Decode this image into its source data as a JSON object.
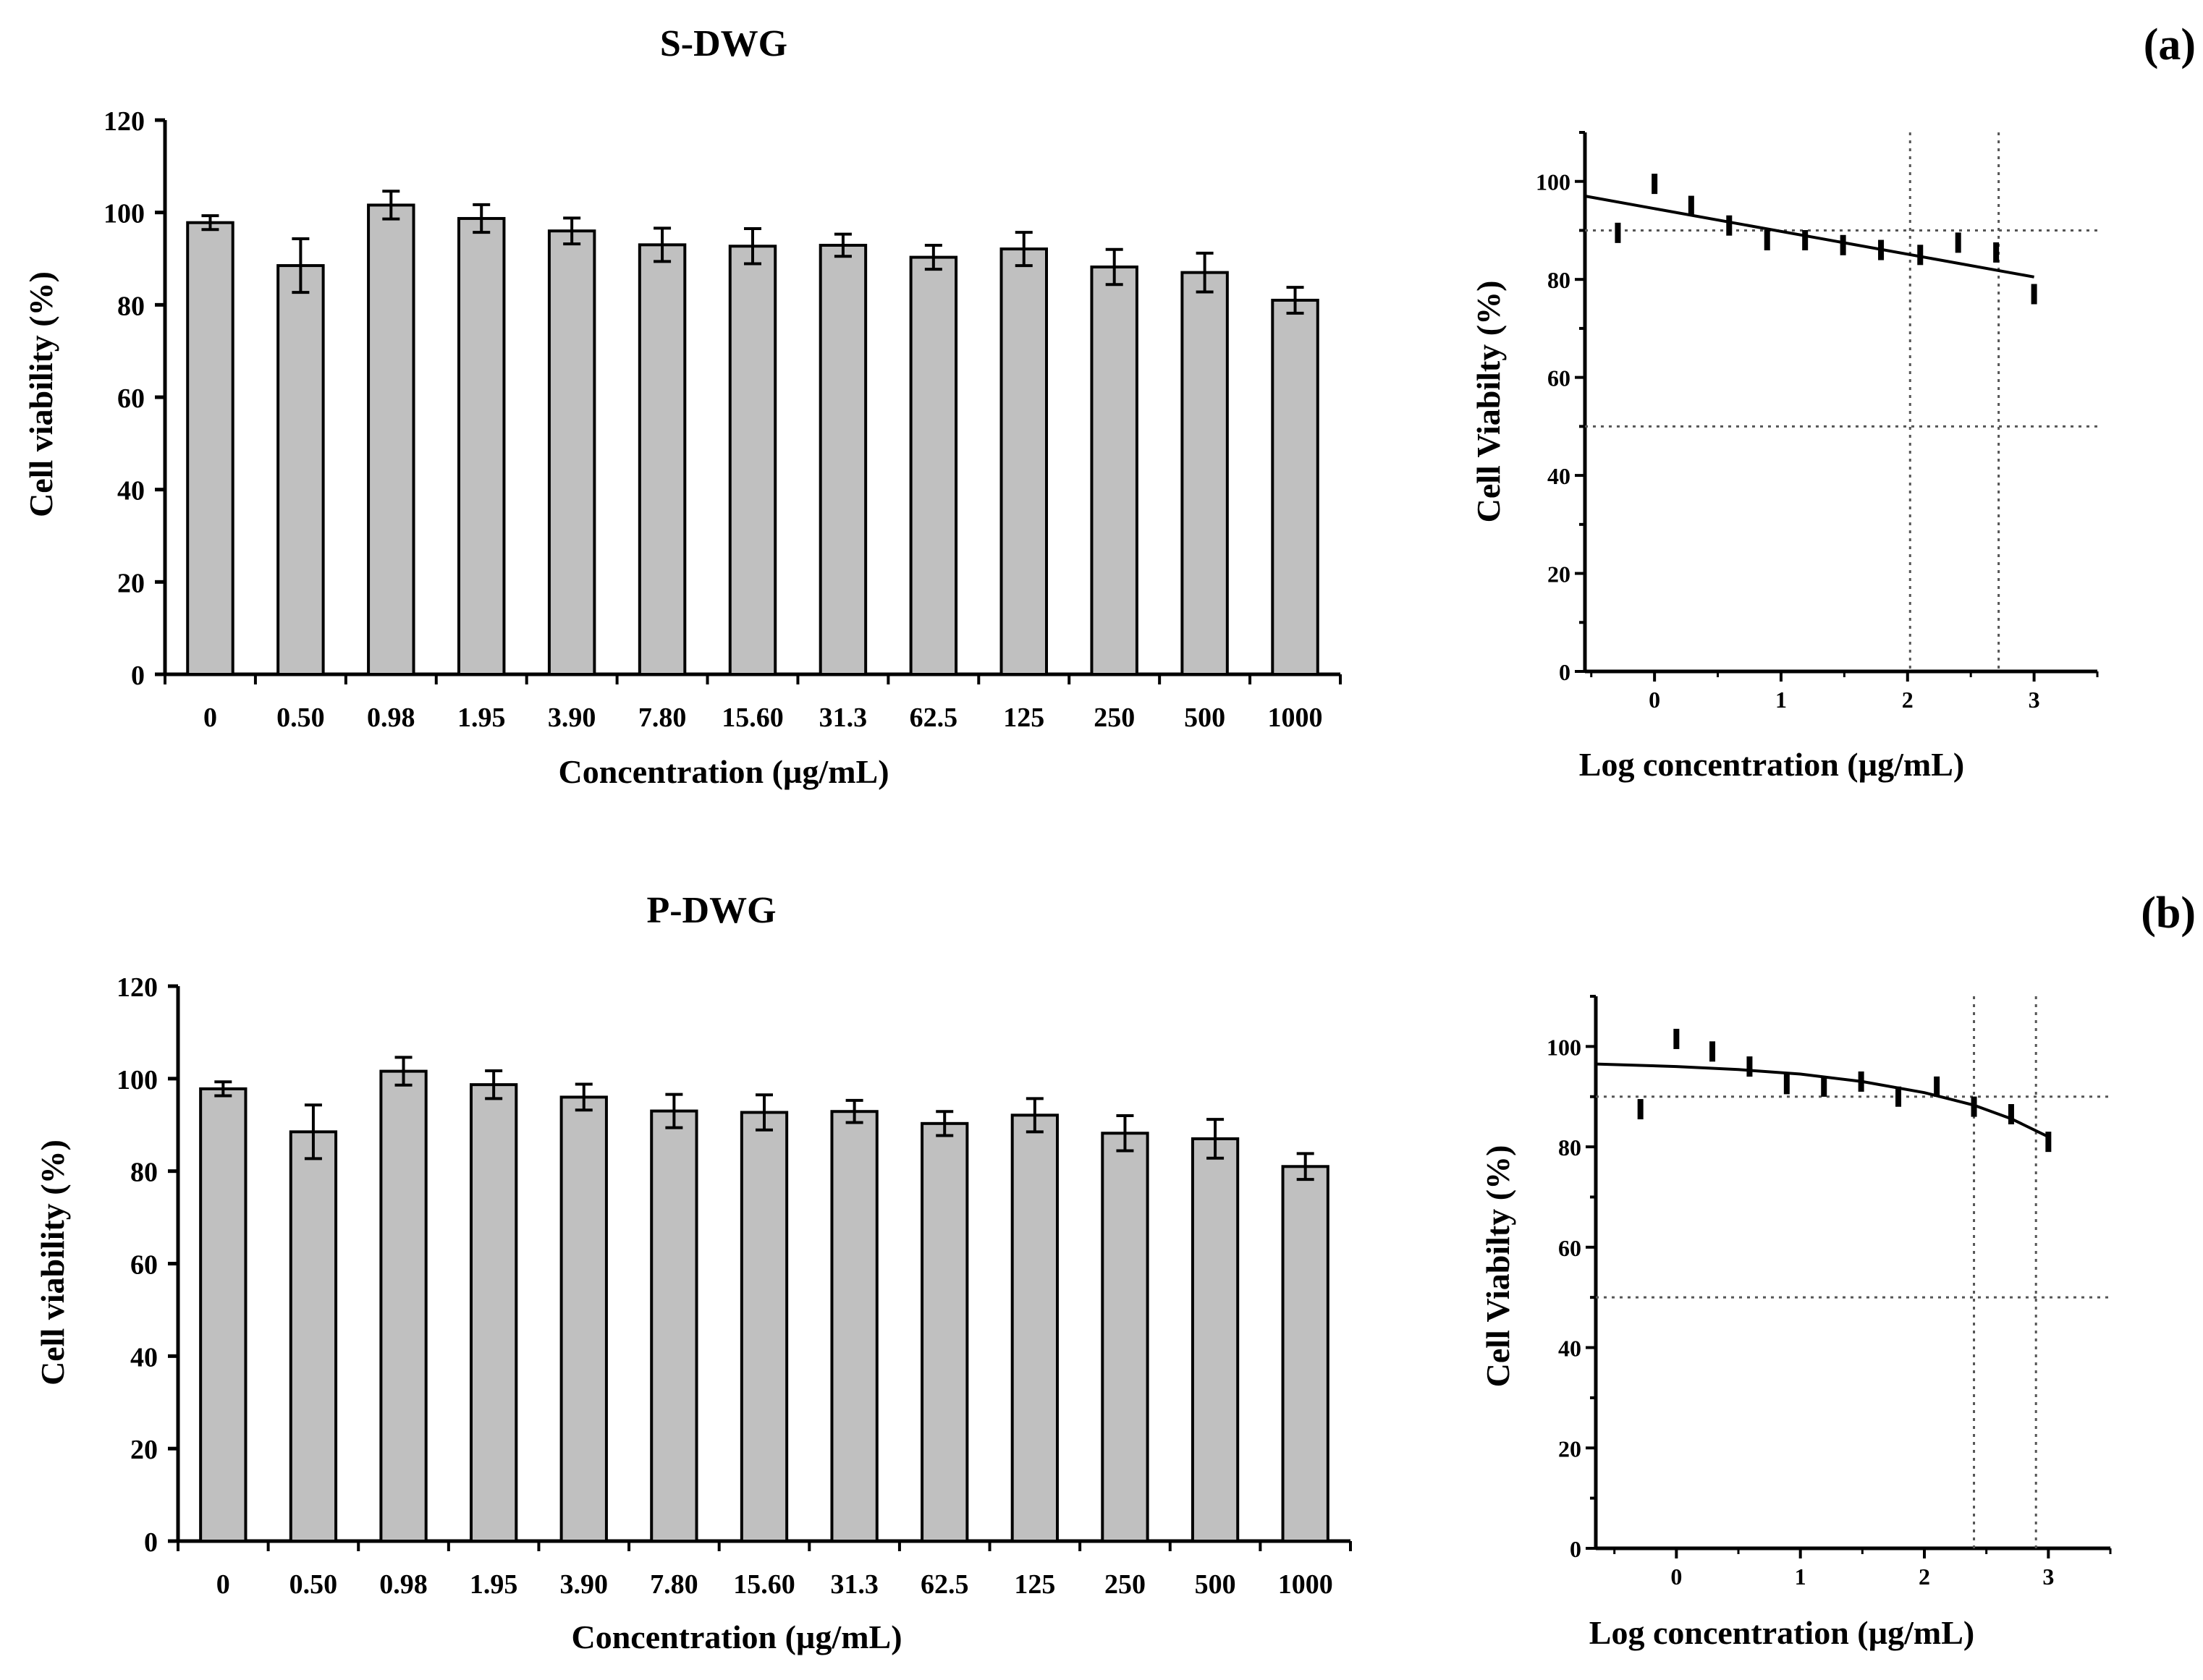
{
  "panels": [
    {
      "label": "(a)",
      "bar_chart": {
        "type": "bar",
        "title": "S-DWG",
        "xlabel": "Concentration (µg/mL)",
        "ylabel": "Cell viability (%)",
        "categories": [
          "0",
          "0.50",
          "0.98",
          "1.95",
          "3.90",
          "7.80",
          "15.60",
          "31.3",
          "62.5",
          "125",
          "250",
          "500",
          "1000"
        ],
        "values": [
          97.8,
          88.5,
          101.6,
          98.7,
          96.0,
          93.0,
          92.7,
          92.9,
          90.3,
          92.1,
          88.2,
          87.0,
          81.0
        ],
        "errors": [
          1.5,
          5.8,
          3.0,
          3.0,
          2.8,
          3.6,
          3.8,
          2.4,
          2.6,
          3.6,
          3.8,
          4.2,
          2.8
        ],
        "ylim": [
          0,
          120
        ],
        "yticks": [
          0,
          20,
          40,
          60,
          80,
          100,
          120
        ],
        "bar_color": "#c0c0c0"
      },
      "curve_chart": {
        "type": "scatter",
        "xlabel": "Log concentration (µg/mL)",
        "ylabel": "Cell Viabilty (%)",
        "xlim": [
          -0.55,
          3.5
        ],
        "ylim": [
          0,
          110
        ],
        "xticks": [
          0,
          1,
          2,
          3
        ],
        "yticks": [
          0,
          20,
          40,
          60,
          80,
          100
        ],
        "points": [
          {
            "x": -0.29,
            "y": 89.5
          },
          {
            "x": 0.0,
            "y": 99.5
          },
          {
            "x": 0.29,
            "y": 95.0
          },
          {
            "x": 0.59,
            "y": 91.0
          },
          {
            "x": 0.89,
            "y": 88.0
          },
          {
            "x": 1.19,
            "y": 88.0
          },
          {
            "x": 1.49,
            "y": 87.0
          },
          {
            "x": 1.79,
            "y": 86.0
          },
          {
            "x": 2.1,
            "y": 85.0
          },
          {
            "x": 2.4,
            "y": 87.5
          },
          {
            "x": 2.7,
            "y": 85.5
          },
          {
            "x": 3.0,
            "y": 77.0
          }
        ],
        "fit_line": [
          {
            "x": -0.55,
            "y": 97.0
          },
          {
            "x": 3.0,
            "y": 80.5
          }
        ],
        "h_reference_lines": [
          90,
          50
        ],
        "v_reference_lines": [
          2.02,
          2.72
        ],
        "grid": false
      }
    },
    {
      "label": "(b)",
      "bar_chart": {
        "type": "bar",
        "title": "P-DWG",
        "xlabel": "Concentration (µg/mL)",
        "ylabel": "Cell viability (%)",
        "categories": [
          "0",
          "0.50",
          "0.98",
          "1.95",
          "3.90",
          "7.80",
          "15.60",
          "31.3",
          "62.5",
          "125",
          "250",
          "500",
          "1000"
        ],
        "values": [
          97.8,
          88.5,
          101.6,
          98.7,
          96.0,
          93.0,
          92.7,
          92.9,
          90.3,
          92.1,
          88.2,
          87.0,
          81.0
        ],
        "errors": [
          1.5,
          5.8,
          3.0,
          3.0,
          2.8,
          3.6,
          3.8,
          2.4,
          2.6,
          3.6,
          3.8,
          4.2,
          2.8
        ],
        "ylim": [
          0,
          120
        ],
        "yticks": [
          0,
          20,
          40,
          60,
          80,
          100,
          120
        ],
        "bar_color": "#c0c0c0"
      },
      "curve_chart": {
        "type": "scatter",
        "xlabel": "Log concentration (µg/mL)",
        "ylabel": "Cell Viabilty (%)",
        "xlim": [
          -0.65,
          3.5
        ],
        "ylim": [
          0,
          110
        ],
        "xticks": [
          0,
          1,
          2,
          3
        ],
        "yticks": [
          0,
          20,
          40,
          60,
          80,
          100
        ],
        "points": [
          {
            "x": -0.29,
            "y": 87.5
          },
          {
            "x": 0.0,
            "y": 101.5
          },
          {
            "x": 0.29,
            "y": 99.0
          },
          {
            "x": 0.59,
            "y": 96.0
          },
          {
            "x": 0.89,
            "y": 92.5
          },
          {
            "x": 1.19,
            "y": 92.0
          },
          {
            "x": 1.49,
            "y": 93.0
          },
          {
            "x": 1.79,
            "y": 90.0
          },
          {
            "x": 2.1,
            "y": 92.0
          },
          {
            "x": 2.4,
            "y": 88.0
          },
          {
            "x": 2.7,
            "y": 86.5
          },
          {
            "x": 3.0,
            "y": 81.0
          }
        ],
        "fit_curve": [
          {
            "x": -0.65,
            "y": 96.5
          },
          {
            "x": 0.0,
            "y": 96.0
          },
          {
            "x": 0.5,
            "y": 95.4
          },
          {
            "x": 1.0,
            "y": 94.5
          },
          {
            "x": 1.5,
            "y": 93.0
          },
          {
            "x": 2.0,
            "y": 90.8
          },
          {
            "x": 2.4,
            "y": 88.3
          },
          {
            "x": 2.7,
            "y": 85.6
          },
          {
            "x": 3.0,
            "y": 82.0
          }
        ],
        "h_reference_lines": [
          90,
          50
        ],
        "v_reference_lines": [
          2.4,
          2.9
        ],
        "grid": false
      }
    }
  ]
}
